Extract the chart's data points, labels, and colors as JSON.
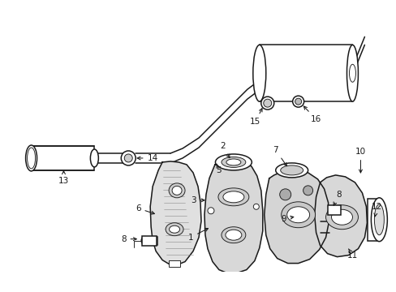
{
  "bg_color": "#ffffff",
  "line_color": "#1a1a1a",
  "figsize": [
    4.89,
    3.6
  ],
  "dpi": 100,
  "lw_main": 1.1,
  "lw_thin": 0.65,
  "lw_thick": 1.5,
  "label_fs": 7.5
}
